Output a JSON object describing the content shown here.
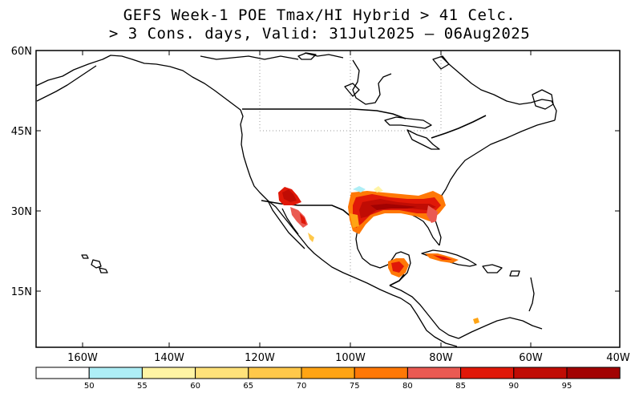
{
  "title": {
    "line1": "GEFS Week-1 POE Tmax/HI Hybrid > 41 Celc.",
    "line2": "> 3 Cons. days, Valid: 31Jul2025 – 06Aug2025"
  },
  "axes": {
    "lat_labels": [
      "60N",
      "45N",
      "30N",
      "15N"
    ],
    "lon_labels": [
      "160W",
      "140W",
      "120W",
      "100W",
      "80W",
      "60W",
      "40W"
    ]
  },
  "colorbar": {
    "colors": [
      "#ffffff",
      "#aeeef6",
      "#fff4a4",
      "#ffe27a",
      "#ffc84a",
      "#ffa414",
      "#ff7806",
      "#ea5a52",
      "#e01808",
      "#c00c04",
      "#a20202"
    ],
    "labels": [
      "50",
      "55",
      "60",
      "65",
      "70",
      "75",
      "80",
      "85",
      "90",
      "95"
    ]
  },
  "icons": {
    "map": "map-icon"
  }
}
